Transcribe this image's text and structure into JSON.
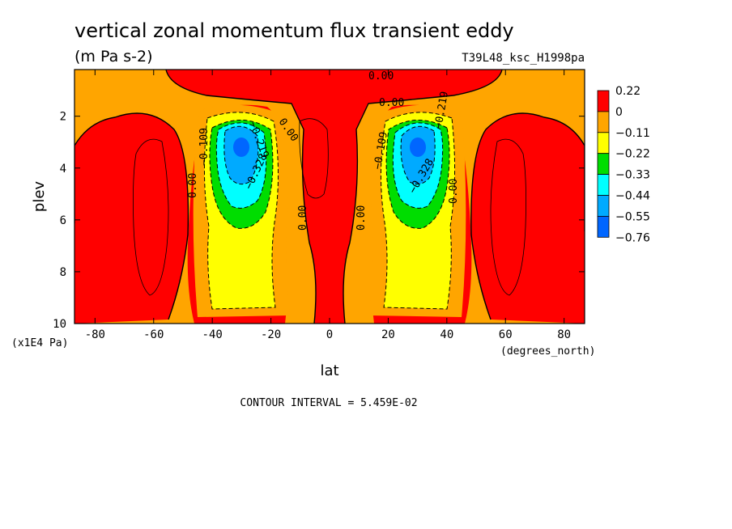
{
  "chart_data": {
    "type": "contour",
    "title": "vertical zonal momentum flux transient eddy",
    "units": "(m Pa s-2)",
    "run_label": "T39L48_ksc_H1998pa",
    "xlabel": "lat",
    "x_units": "(degrees_north)",
    "ylabel": "plev",
    "y_units": "(x1E4 Pa)",
    "xlim": [
      -87,
      87
    ],
    "ylim": [
      10,
      0.2
    ],
    "x_ticks": [
      "-80",
      "-60",
      "-40",
      "-20",
      "0",
      "20",
      "40",
      "60",
      "80"
    ],
    "y_ticks": [
      "2",
      "4",
      "6",
      "8",
      "10"
    ],
    "contour_interval_text": "CONTOUR INTERVAL = 5.459E-02",
    "colorbar": {
      "levels": [
        "0.22",
        "0",
        "−0.11",
        "−0.22",
        "−0.33",
        "−0.44",
        "−0.55",
        "−0.76"
      ],
      "colors": [
        "#ff0000",
        "#ffa500",
        "#ffff00",
        "#00dd00",
        "#00ffff",
        "#00aaff",
        "#0066ff"
      ]
    },
    "contour_labels": [
      "0.00",
      "0.00",
      "0.00",
      "−0.109",
      "−0.219",
      "−0.328",
      "0.00",
      "0.00",
      "0.00",
      "−0.109",
      "−0.219",
      "−0.328",
      "0.00",
      "0.00"
    ],
    "features": [
      {
        "name": "SH negative flux minimum",
        "lat": -31,
        "plev": 3.1,
        "min_value": -0.76
      },
      {
        "name": "NH negative flux minimum",
        "lat": 31,
        "plev": 3.1,
        "min_value": -0.76
      },
      {
        "name": "SH high-latitude positive region",
        "lat": -60,
        "plev": 5
      },
      {
        "name": "NH high-latitude positive region",
        "lat": 60,
        "plev": 5
      }
    ]
  }
}
